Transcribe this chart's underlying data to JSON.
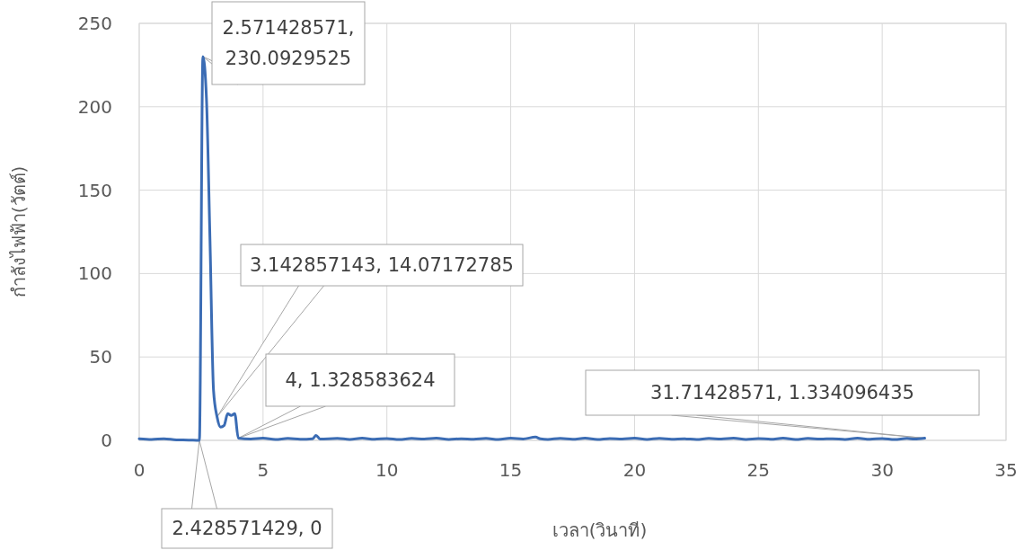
{
  "chart_data": {
    "type": "line",
    "xlabel": "เวลา(วินาที)",
    "ylabel": "กำลังไฟฟ้า(วัตต์)",
    "xlim": [
      0,
      35
    ],
    "xticks": [
      0,
      5,
      10,
      15,
      20,
      25,
      30,
      35
    ],
    "ylim": [
      0,
      250
    ],
    "yticks": [
      0,
      50,
      100,
      150,
      200,
      250
    ],
    "grid": true,
    "series": [
      {
        "color": "#3b6cb4",
        "x": [
          0,
          0.5,
          1,
          1.5,
          2,
          2.428571429,
          2.571428571,
          2.714,
          2.857,
          3.0,
          3.142857143,
          3.286,
          3.429,
          3.571,
          3.714,
          3.857,
          4,
          4.5,
          5,
          5.5,
          6,
          6.5,
          7,
          7.14,
          7.3,
          8,
          8.5,
          9,
          9.5,
          10,
          10.5,
          11,
          11.5,
          12,
          12.5,
          13,
          13.5,
          14,
          14.5,
          15,
          15.5,
          16,
          16.2,
          16.5,
          17,
          17.5,
          18,
          18.5,
          19,
          19.5,
          20,
          20.5,
          21,
          21.5,
          22,
          22.5,
          23,
          23.5,
          24,
          24.5,
          25,
          25.5,
          26,
          26.5,
          27,
          27.5,
          28,
          28.5,
          29,
          29.5,
          30,
          30.5,
          31,
          31.3,
          31.71428571
        ],
        "values": [
          1,
          0.6,
          1,
          0.3,
          0.2,
          0,
          230.0929525,
          205,
          120,
          30,
          14.07172785,
          8,
          9,
          16,
          15,
          16,
          1.328583624,
          0.8,
          1.3,
          0.5,
          1.2,
          0.7,
          1,
          3,
          0.8,
          1.2,
          0.6,
          1.3,
          0.7,
          1.1,
          0.5,
          1.2,
          0.8,
          1.3,
          0.6,
          1,
          0.7,
          1.2,
          0.5,
          1.3,
          0.8,
          2,
          0.9,
          0.6,
          1.2,
          0.7,
          1.3,
          0.5,
          1.1,
          0.8,
          1.3,
          0.6,
          1.2,
          0.7,
          1,
          0.5,
          1.2,
          0.8,
          1.3,
          0.6,
          1.1,
          0.7,
          1.3,
          0.5,
          1.2,
          0.8,
          1,
          0.6,
          1.3,
          0.7,
          1.1,
          0.5,
          1.2,
          0.8,
          1.334096435
        ]
      }
    ],
    "annotations": [
      {
        "text": "2.571428571, 230.0929525",
        "x": 2.571428571,
        "y": 230.0929525
      },
      {
        "text": "3.142857143, 14.07172785",
        "x": 3.142857143,
        "y": 14.07172785
      },
      {
        "text": "4, 1.328583624",
        "x": 4,
        "y": 1.328583624
      },
      {
        "text": "31.71428571, 1.334096435",
        "x": 31.71428571,
        "y": 1.334096435
      },
      {
        "text": "2.428571429, 0",
        "x": 2.428571429,
        "y": 0
      }
    ]
  }
}
